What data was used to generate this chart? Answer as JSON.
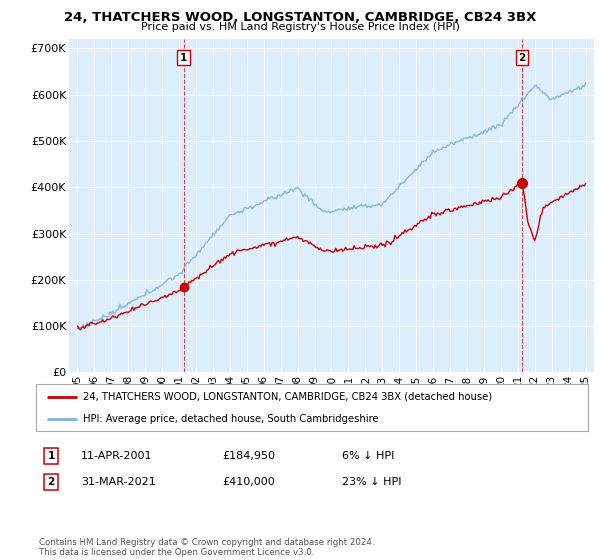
{
  "title": "24, THATCHERS WOOD, LONGSTANTON, CAMBRIDGE, CB24 3BX",
  "subtitle": "Price paid vs. HM Land Registry's House Price Index (HPI)",
  "legend_line1": "24, THATCHERS WOOD, LONGSTANTON, CAMBRIDGE, CB24 3BX (detached house)",
  "legend_line2": "HPI: Average price, detached house, South Cambridgeshire",
  "footer": "Contains HM Land Registry data © Crown copyright and database right 2024.\nThis data is licensed under the Open Government Licence v3.0.",
  "annotation1_date": "11-APR-2001",
  "annotation1_price": "£184,950",
  "annotation1_hpi": "6% ↓ HPI",
  "annotation2_date": "31-MAR-2021",
  "annotation2_price": "£410,000",
  "annotation2_hpi": "23% ↓ HPI",
  "sale1_x": 2001.27,
  "sale1_y": 184950,
  "sale2_x": 2021.25,
  "sale2_y": 410000,
  "hpi_color": "#7ab3d9",
  "price_color": "#cc0000",
  "dashed_color": "#cc0000",
  "plot_bg_color": "#ddeeff",
  "background_color": "#ffffff",
  "xlim": [
    1994.5,
    2025.5
  ],
  "ylim": [
    0,
    720000
  ],
  "yticks": [
    0,
    100000,
    200000,
    300000,
    400000,
    500000,
    600000,
    700000
  ],
  "ytick_labels": [
    "£0",
    "£100K",
    "£200K",
    "£300K",
    "£400K",
    "£500K",
    "£600K",
    "£700K"
  ],
  "xticks": [
    1995,
    1996,
    1997,
    1998,
    1999,
    2000,
    2001,
    2002,
    2003,
    2004,
    2005,
    2006,
    2007,
    2008,
    2009,
    2010,
    2011,
    2012,
    2013,
    2014,
    2015,
    2016,
    2017,
    2018,
    2019,
    2020,
    2021,
    2022,
    2023,
    2024,
    2025
  ]
}
